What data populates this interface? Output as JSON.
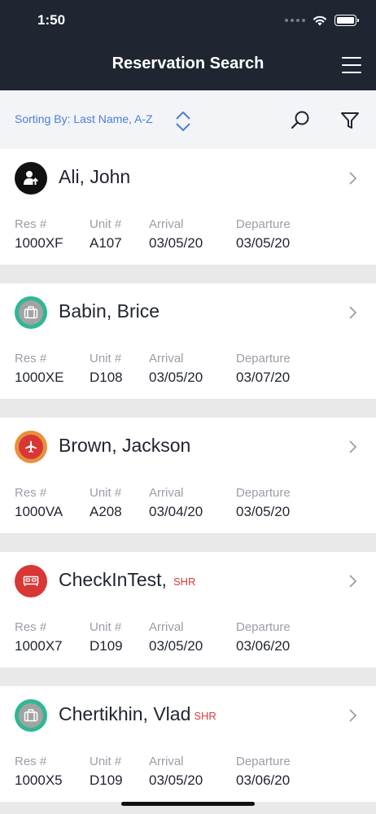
{
  "status_bar": {
    "time": "1:50"
  },
  "header": {
    "title": "Reservation Search"
  },
  "sort": {
    "label": "Sorting By: Last Name, A-Z"
  },
  "columns": {
    "res": "Res #",
    "unit": "Unit #",
    "arrival": "Arrival",
    "departure": "Departure"
  },
  "reservations": [
    {
      "name": "Ali, John",
      "tag": "",
      "icon": "person-arrow-icon",
      "res": "1000XF",
      "unit": "A107",
      "arrival": "03/05/20",
      "departure": "03/05/20"
    },
    {
      "name": "Babin, Brice",
      "tag": "",
      "icon": "luggage-icon",
      "res": "1000XE",
      "unit": "D108",
      "arrival": "03/05/20",
      "departure": "03/07/20"
    },
    {
      "name": "Brown, Jackson",
      "tag": "",
      "icon": "airplane-icon",
      "res": "1000VA",
      "unit": "A208",
      "arrival": "03/04/20",
      "departure": "03/05/20"
    },
    {
      "name": "CheckInTest,",
      "tag": "SHR",
      "icon": "bed-icon",
      "res": "1000X7",
      "unit": "D109",
      "arrival": "03/05/20",
      "departure": "03/06/20"
    },
    {
      "name": "Chertikhin, Vlad",
      "tag": "SHR",
      "icon": "luggage-icon",
      "res": "1000X5",
      "unit": "D109",
      "arrival": "03/05/20",
      "departure": "03/06/20"
    }
  ],
  "colors": {
    "header_bg": "#1f2632",
    "sort_accent": "#4a7fd6",
    "tag_red": "#d93b3b",
    "checked_in_black": "#111111",
    "green_ring": "#2fb796",
    "orange_ring": "#e8903a",
    "red_fill": "#d93636"
  }
}
